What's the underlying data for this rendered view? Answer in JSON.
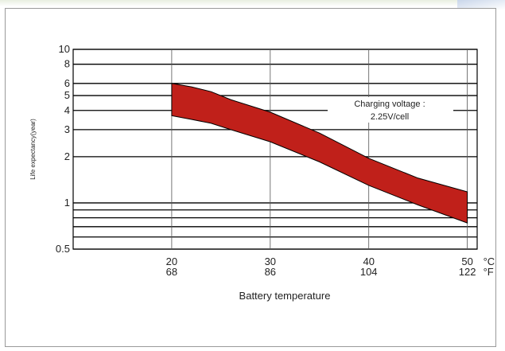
{
  "chart_data": {
    "type": "area",
    "title": "",
    "xlabel": "Battery temperature",
    "ylabel": "Life expectancy(year)",
    "yscale": "log",
    "ylim": [
      0.5,
      10
    ],
    "xlim": [
      10,
      51
    ],
    "y_ticks": [
      10,
      8,
      6,
      5,
      4,
      3,
      2,
      1,
      0.5
    ],
    "y_lines": [
      10,
      8,
      6,
      5,
      4,
      3,
      2,
      1,
      0.9,
      0.8,
      0.7,
      0.6,
      0.5
    ],
    "x_ticks": [
      {
        "c": 20,
        "f": "68"
      },
      {
        "c": 30,
        "f": "86"
      },
      {
        "c": 40,
        "f": "104"
      },
      {
        "c": 50,
        "f": "122"
      }
    ],
    "unit_c": "°C",
    "unit_f": "°F",
    "band": {
      "name": "",
      "color": "#c0201a",
      "upper": [
        [
          20,
          6.0
        ],
        [
          22,
          5.7
        ],
        [
          24,
          5.3
        ],
        [
          26,
          4.7
        ],
        [
          30,
          3.9
        ],
        [
          35,
          2.85
        ],
        [
          40,
          1.95
        ],
        [
          45,
          1.45
        ],
        [
          50,
          1.18
        ]
      ],
      "lower": [
        [
          20,
          3.7
        ],
        [
          22,
          3.5
        ],
        [
          24,
          3.3
        ],
        [
          26,
          3.0
        ],
        [
          30,
          2.5
        ],
        [
          35,
          1.85
        ],
        [
          40,
          1.3
        ],
        [
          45,
          0.97
        ],
        [
          50,
          0.74
        ]
      ]
    },
    "annotation": {
      "line1": "Charging voltage :",
      "line2": "2.25V/cell"
    }
  }
}
